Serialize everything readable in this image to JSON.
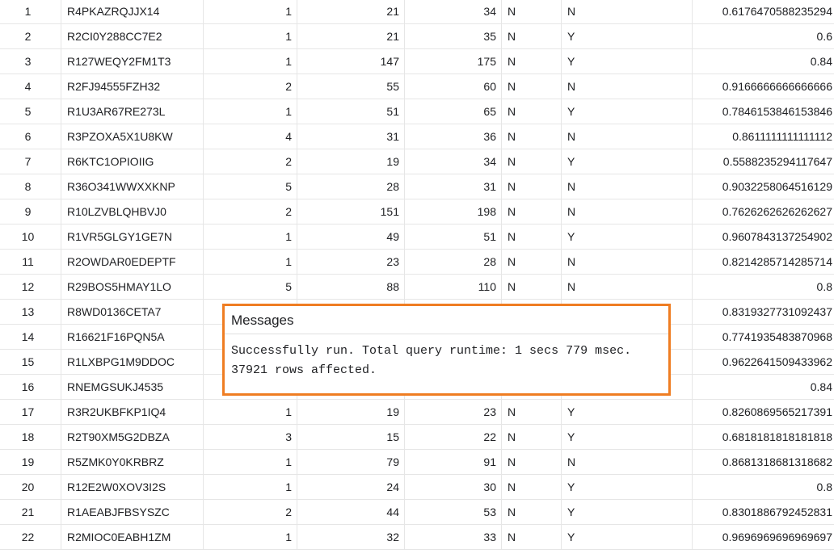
{
  "rows": [
    [
      "1",
      "R4PKAZRQJJX14",
      "1",
      "21",
      "34",
      "N",
      "N",
      "0.6176470588235294"
    ],
    [
      "2",
      "R2CI0Y288CC7E2",
      "1",
      "21",
      "35",
      "N",
      "Y",
      "0.6"
    ],
    [
      "3",
      "R127WEQY2FM1T3",
      "1",
      "147",
      "175",
      "N",
      "Y",
      "0.84"
    ],
    [
      "4",
      "R2FJ94555FZH32",
      "2",
      "55",
      "60",
      "N",
      "N",
      "0.9166666666666666"
    ],
    [
      "5",
      "R1U3AR67RE273L",
      "1",
      "51",
      "65",
      "N",
      "Y",
      "0.7846153846153846"
    ],
    [
      "6",
      "R3PZOXA5X1U8KW",
      "4",
      "31",
      "36",
      "N",
      "N",
      "0.8611111111111112"
    ],
    [
      "7",
      "R6KTC1OPIOIIG",
      "2",
      "19",
      "34",
      "N",
      "Y",
      "0.5588235294117647"
    ],
    [
      "8",
      "R36O341WWXXKNP",
      "5",
      "28",
      "31",
      "N",
      "N",
      "0.9032258064516129"
    ],
    [
      "9",
      "R10LZVBLQHBVJ0",
      "2",
      "151",
      "198",
      "N",
      "N",
      "0.7626262626262627"
    ],
    [
      "10",
      "R1VR5GLGY1GE7N",
      "1",
      "49",
      "51",
      "N",
      "Y",
      "0.9607843137254902"
    ],
    [
      "11",
      "R2OWDAR0EDEPTF",
      "1",
      "23",
      "28",
      "N",
      "N",
      "0.8214285714285714"
    ],
    [
      "12",
      "R29BOS5HMAY1LO",
      "5",
      "88",
      "110",
      "N",
      "N",
      "0.8"
    ],
    [
      "13",
      "R8WD0136CETA7",
      "",
      "",
      "",
      "",
      "",
      "0.8319327731092437"
    ],
    [
      "14",
      "R16621F16PQN5A",
      "",
      "",
      "",
      "",
      "",
      "0.7741935483870968"
    ],
    [
      "15",
      "R1LXBPG1M9DDOC",
      "",
      "",
      "",
      "",
      "",
      "0.9622641509433962"
    ],
    [
      "16",
      "RNEMGSUKJ4535",
      "",
      "",
      "",
      "",
      "",
      "0.84"
    ],
    [
      "17",
      "R3R2UKBFKP1IQ4",
      "1",
      "19",
      "23",
      "N",
      "Y",
      "0.8260869565217391"
    ],
    [
      "18",
      "R2T90XM5G2DBZA",
      "3",
      "15",
      "22",
      "N",
      "Y",
      "0.6818181818181818"
    ],
    [
      "19",
      "R5ZMK0Y0KRBRZ",
      "1",
      "79",
      "91",
      "N",
      "N",
      "0.8681318681318682"
    ],
    [
      "20",
      "R12E2W0XOV3I2S",
      "1",
      "24",
      "30",
      "N",
      "Y",
      "0.8"
    ],
    [
      "21",
      "R1AEABJFBSYSZC",
      "2",
      "44",
      "53",
      "N",
      "Y",
      "0.8301886792452831"
    ],
    [
      "22",
      "R2MIOC0EABH1ZM",
      "1",
      "32",
      "33",
      "N",
      "Y",
      "0.9696969696969697"
    ]
  ],
  "messages": {
    "title": "Messages",
    "line1": "Successfully run. Total query runtime: 1 secs 779 msec.",
    "line2": "37921 rows affected."
  },
  "colors": {
    "highlight_border": "#ef7d22",
    "grid_line": "#e6e6e6"
  }
}
